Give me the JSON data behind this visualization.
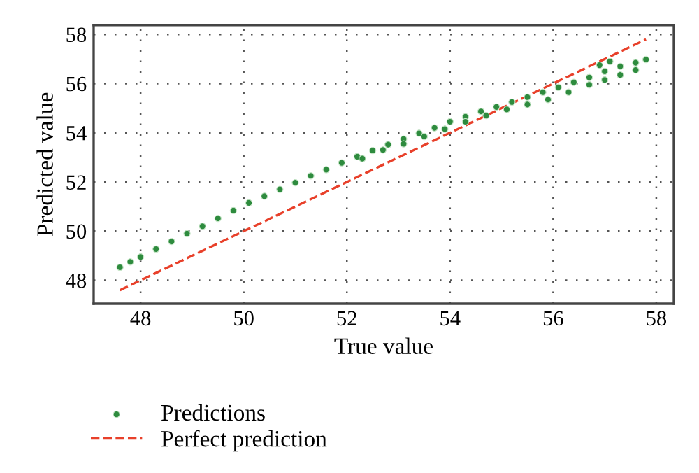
{
  "chart_data": {
    "type": "scatter",
    "xlabel": "True value",
    "ylabel": "Predicted value",
    "xlim": [
      47.09,
      58.34
    ],
    "ylim": [
      47.05,
      58.38
    ],
    "xticks": [
      48,
      50,
      52,
      54,
      56,
      58
    ],
    "yticks": [
      48,
      50,
      52,
      54,
      56,
      58
    ],
    "grid": true,
    "legend": "bottom",
    "series": [
      {
        "name": "Predictions",
        "marker": "circle",
        "color": "#2e8b3e",
        "x": [
          47.6,
          47.8,
          48.0,
          48.3,
          48.6,
          48.9,
          49.2,
          49.5,
          49.8,
          50.1,
          50.4,
          50.7,
          51.0,
          51.3,
          51.6,
          51.9,
          52.2,
          52.5,
          52.8,
          53.1,
          53.4,
          53.7,
          54.0,
          54.3,
          54.6,
          54.9,
          55.2,
          55.5,
          55.8,
          56.1,
          56.4,
          56.7,
          57.0,
          57.3,
          57.6,
          57.8,
          52.3,
          52.7,
          53.1,
          53.5,
          53.9,
          54.3,
          54.7,
          55.1,
          55.5,
          55.9,
          56.3,
          56.7,
          57.0,
          57.3,
          57.6,
          56.9,
          57.1
        ],
        "values": [
          48.53,
          48.75,
          48.95,
          49.27,
          49.58,
          49.9,
          50.2,
          50.52,
          50.84,
          51.15,
          51.42,
          51.7,
          51.97,
          52.25,
          52.5,
          52.78,
          53.03,
          53.28,
          53.52,
          53.75,
          53.98,
          54.2,
          54.45,
          54.65,
          54.87,
          55.05,
          55.25,
          55.45,
          55.65,
          55.85,
          56.05,
          56.25,
          56.5,
          56.7,
          56.85,
          56.98,
          52.95,
          53.3,
          53.55,
          53.85,
          54.15,
          54.45,
          54.7,
          54.95,
          55.15,
          55.35,
          55.65,
          55.95,
          56.15,
          56.35,
          56.55,
          56.75,
          56.9
        ]
      },
      {
        "name": "Perfect prediction",
        "type": "line",
        "line_style": "dashed",
        "color": "#e8402a",
        "x": [
          47.6,
          57.8
        ],
        "values": [
          47.6,
          57.8
        ]
      }
    ]
  }
}
